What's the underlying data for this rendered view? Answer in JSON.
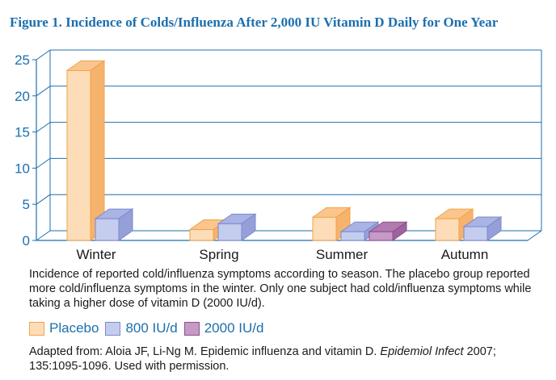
{
  "chart_data": {
    "type": "bar",
    "title": "Figure 1. Incidence of Colds/Influenza After 2,000 IU Vitamin D Daily for One Year",
    "categories": [
      "Winter",
      "Spring",
      "Summer",
      "Autumn"
    ],
    "series": [
      {
        "name": "Placebo",
        "values": [
          23.5,
          1.5,
          3.2,
          3.0
        ]
      },
      {
        "name": "800 IU/d",
        "values": [
          3.0,
          2.3,
          1.2,
          1.9
        ]
      },
      {
        "name": "2000 IU/d",
        "values": [
          null,
          null,
          1.2,
          null
        ]
      }
    ],
    "y_ticks": [
      "0",
      "5",
      "10",
      "15",
      "20",
      "25"
    ],
    "ylim": [
      0,
      25
    ],
    "xlabel": "",
    "ylabel": "",
    "grid": true,
    "colors": {
      "Placebo": {
        "front": "#fddcb8",
        "top": "#fbc58e",
        "side": "#f6b36d",
        "edge": "#f2a345"
      },
      "800 IU/d": {
        "front": "#c5cdef",
        "top": "#a9b3e4",
        "side": "#95a0da",
        "edge": "#7d88c9"
      },
      "2000 IU/d": {
        "front": "#c79ac6",
        "top": "#b27bb0",
        "side": "#9e629c",
        "edge": "#8b4e89"
      },
      "axis": "#1c6fae",
      "title": "#1c6fae"
    }
  },
  "caption": "Incidence of reported cold/influenza symptoms according to season. The placebo group reported more cold/influenza symptoms in the winter. Only one subject had cold/influenza symptoms while taking a higher dose of vitamin D (2000 IU/d).",
  "legend": [
    "Placebo",
    "800 IU/d",
    "2000 IU/d"
  ],
  "source": {
    "prefix": "Adapted from: Aloia JF, Li-Ng M. Epidemic influenza and vitamin D. ",
    "journal": "Epidemiol Infect",
    "suffix": " 2007; 135:1095-1096. Used with permission."
  }
}
